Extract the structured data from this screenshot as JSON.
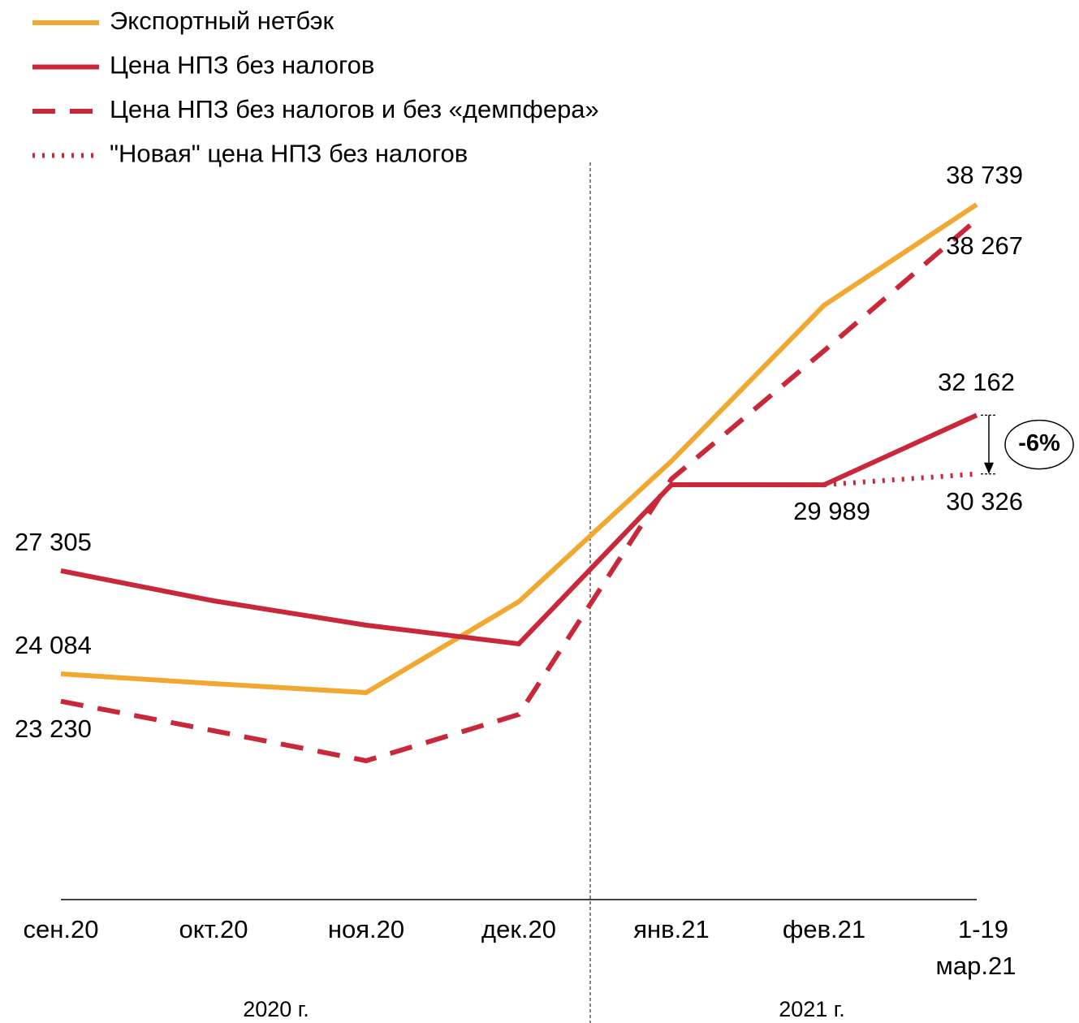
{
  "chart_data": {
    "type": "line",
    "categories": [
      "сен.20",
      "окт.20",
      "ноя.20",
      "дек.20",
      "янв.21",
      "фев.21",
      "1-19 мар.21"
    ],
    "groups": [
      "2020 г.",
      "2021 г."
    ],
    "ylim": [
      17037,
      40055
    ],
    "legend": "top-left",
    "series": [
      {
        "name": "Экспортный нетбэк",
        "color": "#f0a830",
        "style": "solid",
        "values": [
          24084,
          23780,
          23500,
          26340,
          30726,
          35593,
          38739
        ],
        "value_labels": [
          "24 084",
          null,
          null,
          null,
          null,
          null,
          "38 739"
        ]
      },
      {
        "name": "Цена НПЗ без налогов",
        "color": "#c8283a",
        "style": "solid",
        "values": [
          27305,
          26366,
          25605,
          25022,
          29990,
          29989,
          32162
        ],
        "value_labels": [
          "27 305",
          null,
          null,
          null,
          null,
          "29 989",
          "32 162"
        ]
      },
      {
        "name": "Цена НПЗ без налогов и без «демпфера»",
        "color": "#c8283a",
        "style": "dashed",
        "values": [
          23230,
          22310,
          21372,
          22817,
          30168,
          34173,
          38267
        ],
        "value_labels": [
          "23 230",
          null,
          null,
          null,
          null,
          null,
          "38 267"
        ]
      },
      {
        "name": "\"Новая\" цена НПЗ без налогов",
        "color": "#c8283a",
        "style": "dotted",
        "values": [
          null,
          null,
          null,
          null,
          null,
          29989,
          30326
        ],
        "value_labels": [
          null,
          null,
          null,
          null,
          null,
          null,
          "30 326"
        ]
      }
    ],
    "annotation": "-6%"
  }
}
